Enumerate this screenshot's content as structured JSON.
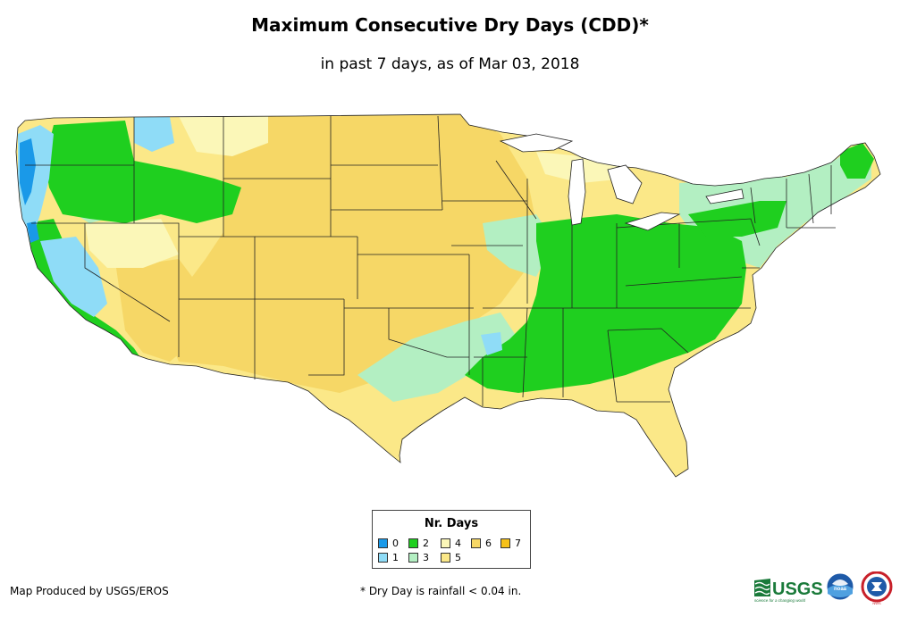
{
  "header": {
    "title": "Maximum Consecutive Dry Days (CDD)*",
    "subtitle": "in past 7 days, as of Mar 03, 2018"
  },
  "legend": {
    "title": "Nr. Days",
    "items": [
      {
        "label": "0",
        "color": "#1a99e8"
      },
      {
        "label": "1",
        "color": "#8fdcf7"
      },
      {
        "label": "2",
        "color": "#1fcf1f"
      },
      {
        "label": "3",
        "color": "#b3efc2"
      },
      {
        "label": "4",
        "color": "#fbf7b8"
      },
      {
        "label": "5",
        "color": "#fbe888"
      },
      {
        "label": "6",
        "color": "#f6d766"
      },
      {
        "label": "7",
        "color": "#f6c11a"
      }
    ]
  },
  "footer": {
    "producer": "Map Produced by USGS/EROS",
    "note": "* Dry Day is rainfall < 0.04 in."
  },
  "logos": {
    "usgs": "USGS",
    "usgs_tagline": "science for a changing world",
    "noaa": "noaa",
    "nws": "NWS"
  }
}
